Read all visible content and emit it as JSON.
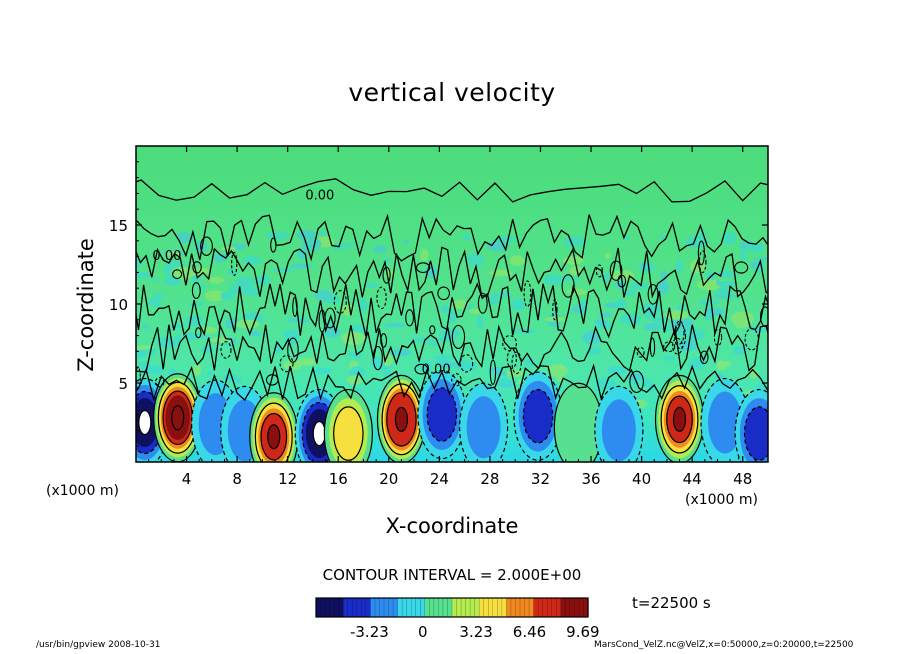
{
  "chart_data": {
    "type": "heatmap",
    "title": "vertical velocity",
    "xlabel": "X-coordinate",
    "ylabel": "Z-coordinate",
    "x_unit_left": "(x1000 m)",
    "x_unit_right": "(x1000 m)",
    "x_ticks": [
      "4",
      "8",
      "12",
      "16",
      "20",
      "24",
      "28",
      "32",
      "36",
      "40",
      "44",
      "48"
    ],
    "x_tick_values": [
      4,
      8,
      12,
      16,
      20,
      24,
      28,
      32,
      36,
      40,
      44,
      48
    ],
    "y_ticks": [
      "5",
      "10",
      "15"
    ],
    "y_tick_values": [
      5,
      10,
      15
    ],
    "xlim": [
      0,
      50
    ],
    "ylim": [
      0,
      20
    ],
    "contour_interval": "CONTOUR INTERVAL = 2.000E+00",
    "contour_label": "0.00",
    "time": "t=22500 s",
    "colorbar": {
      "ticks": [
        "-3.23",
        "0",
        "3.23",
        "6.46",
        "9.69"
      ],
      "tick_values": [
        -3.23,
        0,
        3.23,
        6.46,
        9.69
      ],
      "range": [
        -6.46,
        10.0
      ],
      "colors": [
        "#101060",
        "#1a2cc8",
        "#2e8cf0",
        "#38d8e8",
        "#56e090",
        "#b4ec50",
        "#f6e040",
        "#f08a20",
        "#d02818",
        "#8a1010"
      ]
    },
    "cells": [
      {
        "x": 0.7,
        "z": 2.5,
        "w": -6.5
      },
      {
        "x": 3.3,
        "z": 2.8,
        "w": 9.5
      },
      {
        "x": 6.3,
        "z": 2.4,
        "w": -3.5
      },
      {
        "x": 8.6,
        "z": 2.0,
        "w": -2.0
      },
      {
        "x": 10.9,
        "z": 1.6,
        "w": 7.5
      },
      {
        "x": 14.5,
        "z": 1.8,
        "w": -6.5
      },
      {
        "x": 16.8,
        "z": 1.8,
        "w": 4.0
      },
      {
        "x": 21.0,
        "z": 2.7,
        "w": 9.0
      },
      {
        "x": 24.2,
        "z": 3.0,
        "w": -4.0
      },
      {
        "x": 27.5,
        "z": 2.2,
        "w": -2.0
      },
      {
        "x": 31.8,
        "z": 2.9,
        "w": -4.0
      },
      {
        "x": 35.0,
        "z": 2.2,
        "w": 1.5
      },
      {
        "x": 38.2,
        "z": 2.0,
        "w": -3.0
      },
      {
        "x": 43.0,
        "z": 2.7,
        "w": 8.0
      },
      {
        "x": 46.6,
        "z": 2.5,
        "w": -3.5
      },
      {
        "x": 49.3,
        "z": 1.8,
        "w": -4.0
      }
    ]
  },
  "footer": {
    "left": "/usr/bin/gpview   2008-10-31",
    "right": "MarsCond_VelZ.nc@VelZ,x=0:50000,z=0:20000,t=22500"
  }
}
